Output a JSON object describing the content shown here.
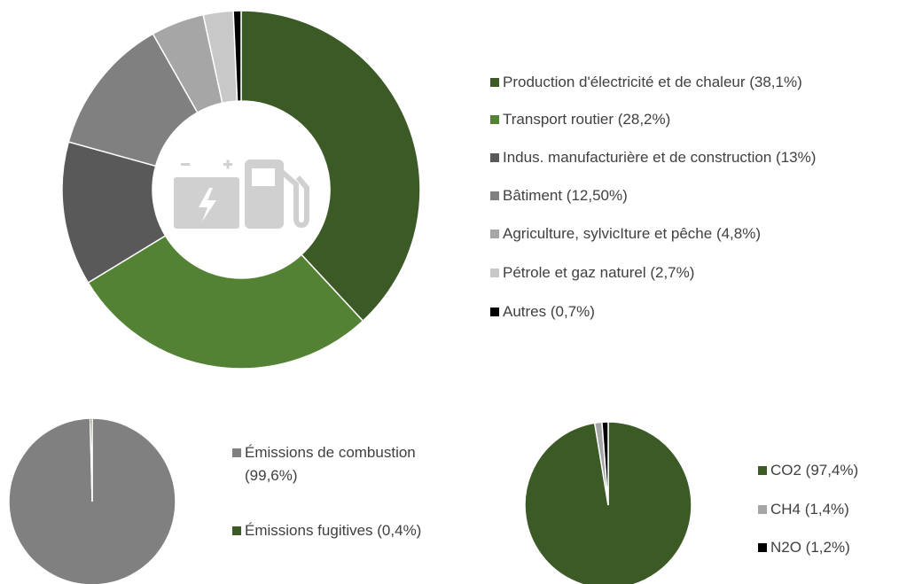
{
  "chart_data": [
    {
      "type": "donut",
      "categories": [
        "Production d'électricité et de chaleur (38,1%)",
        "Transport routier (28,2%)",
        "Indus. manufacturière et de construction (13%)",
        "Bâtiment (12,50%)",
        "Agriculture, sylvicIture et pêche (4,8%)",
        "Pétrole et gaz naturel (2,7%)",
        "Autres (0,7%)"
      ],
      "values": [
        38.1,
        28.2,
        13,
        12.5,
        4.8,
        2.7,
        0.7
      ],
      "colors": [
        "#3b5a25",
        "#548235",
        "#595959",
        "#808080",
        "#a6a6a6",
        "#c8c8c8",
        "#000000"
      ]
    },
    {
      "type": "pie",
      "categories": [
        "Émissions de combustion (99,6%)",
        "Émissions fugitives (0,4%)"
      ],
      "values": [
        99.6,
        0.4
      ],
      "colors": [
        "#808080",
        "#3b5a25"
      ]
    },
    {
      "type": "pie",
      "categories": [
        "CO2 (97,4%)",
        "CH4 (1,4%)",
        "N2O (1,2%)"
      ],
      "values": [
        97.4,
        1.4,
        1.2
      ],
      "colors": [
        "#3b5a25",
        "#a6a6a6",
        "#000000"
      ]
    }
  ]
}
